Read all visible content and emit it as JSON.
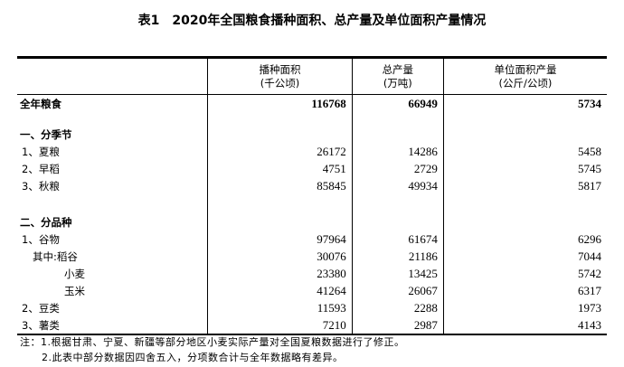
{
  "title": "表1　2020年全国粮食播种面积、总产量及单位面积产量情况",
  "headers": [
    {
      "name": "播种面积",
      "unit": "(千公顷)"
    },
    {
      "name": "总产量",
      "unit": "(万吨)"
    },
    {
      "name": "单位面积产量",
      "unit": "(公斤/公顷)"
    }
  ],
  "total": {
    "label": "全年粮食",
    "area": "116768",
    "output": "66949",
    "yield": "5734"
  },
  "season": {
    "heading": "一、分季节",
    "rows": [
      {
        "label": "1、夏粮",
        "area": "26172",
        "output": "14286",
        "yield": "5458"
      },
      {
        "label": "2、早稻",
        "area": "4751",
        "output": "2729",
        "yield": "5745"
      },
      {
        "label": "3、秋粮",
        "area": "85845",
        "output": "49934",
        "yield": "5817"
      }
    ]
  },
  "variety": {
    "heading": "二、分品种",
    "rows": [
      {
        "label": "1、谷物",
        "area": "97964",
        "output": "61674",
        "yield": "6296"
      },
      {
        "label": "其中:稻谷",
        "area": "30076",
        "output": "21186",
        "yield": "7044"
      },
      {
        "label": "小麦",
        "area": "23380",
        "output": "13425",
        "yield": "5742"
      },
      {
        "label": "玉米",
        "area": "41264",
        "output": "26067",
        "yield": "6317"
      },
      {
        "label": "2、豆类",
        "area": "11593",
        "output": "2288",
        "yield": "1973"
      },
      {
        "label": "3、薯类",
        "area": "7210",
        "output": "2987",
        "yield": "4143"
      }
    ]
  },
  "notes": [
    "注：1.根据甘肃、宁夏、新疆等部分地区小麦实际产量对全国夏粮数据进行了修正。",
    "2.此表中部分数据因四舍五入，分项数合计与全年数据略有差异。"
  ]
}
